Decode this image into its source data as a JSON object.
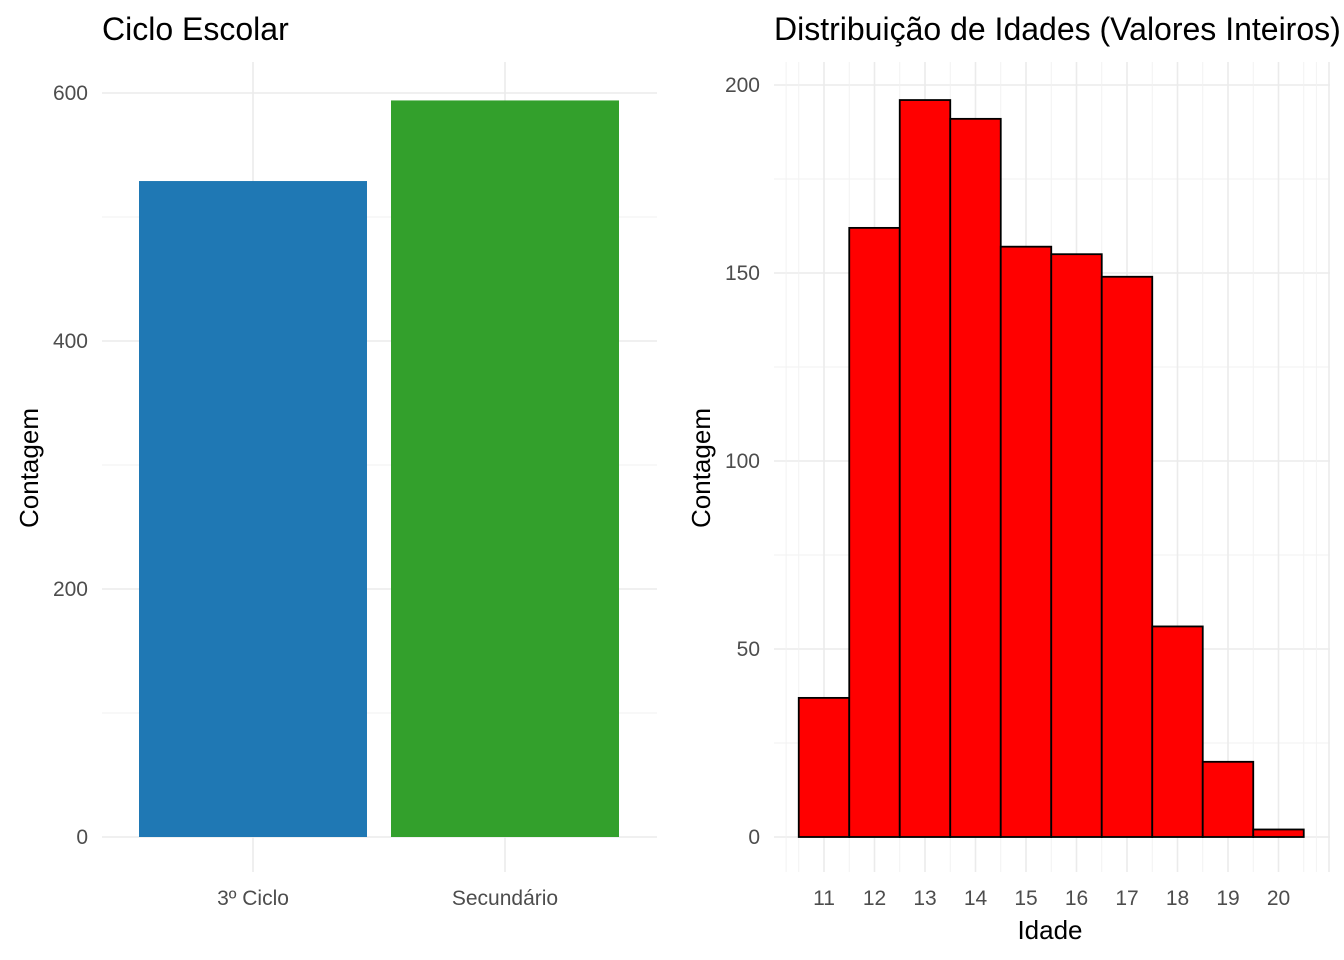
{
  "chart_data": [
    {
      "type": "bar",
      "title": "Ciclo Escolar",
      "xlabel": "",
      "ylabel": "Contagem",
      "categories": [
        "3º Ciclo",
        "Secundário"
      ],
      "values": [
        529,
        594
      ],
      "colors": [
        "#1F78B4",
        "#33A02C"
      ],
      "ylim": [
        0,
        625
      ],
      "yticks": [
        0,
        200,
        400,
        600
      ],
      "grid": true
    },
    {
      "type": "bar",
      "title": "Distribuição de Idades (Valores Inteiros)",
      "xlabel": "Idade",
      "ylabel": "Contagem",
      "categories": [
        "11",
        "12",
        "13",
        "14",
        "15",
        "16",
        "17",
        "18",
        "19",
        "20"
      ],
      "x": [
        11,
        12,
        13,
        14,
        15,
        16,
        17,
        18,
        19,
        20
      ],
      "values": [
        37,
        162,
        196,
        191,
        157,
        155,
        149,
        56,
        20,
        2
      ],
      "fill_color": "#FF0000",
      "border_color": "#000000",
      "ylim": [
        0,
        205
      ],
      "yticks": [
        0,
        50,
        100,
        150,
        200
      ],
      "grid": true
    }
  ]
}
